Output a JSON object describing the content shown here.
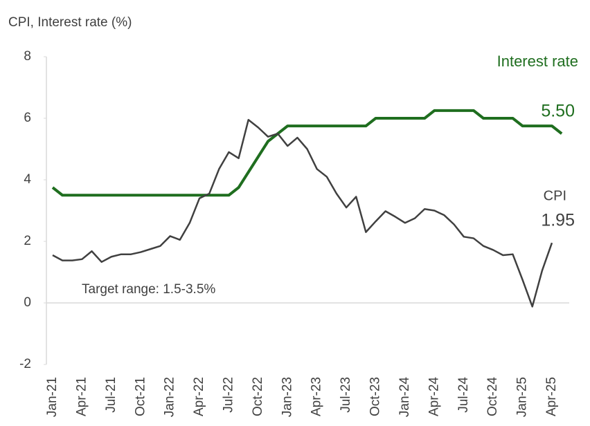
{
  "chart_data": {
    "type": "line",
    "y_axis_title": "CPI, Interest rate (%)",
    "categories": [
      "Jan-21",
      null,
      null,
      "Apr-21",
      null,
      null,
      "Jul-21",
      null,
      null,
      "Oct-21",
      null,
      null,
      "Jan-22",
      null,
      null,
      "Apr-22",
      null,
      null,
      "Jul-22",
      null,
      null,
      "Oct-22",
      null,
      null,
      "Jan-23",
      null,
      null,
      "Apr-23",
      null,
      null,
      "Jul-23",
      null,
      null,
      "Oct-23",
      null,
      null,
      "Jan-24",
      null,
      null,
      "Apr-24",
      null,
      null,
      "Jul-24",
      null,
      null,
      "Oct-24",
      null,
      null,
      "Jan-25",
      null,
      null,
      "Apr-25",
      null
    ],
    "series": [
      {
        "name": "Interest rate",
        "color": "#1f6e1f",
        "values": [
          3.75,
          3.5,
          3.5,
          3.5,
          3.5,
          3.5,
          3.5,
          3.5,
          3.5,
          3.5,
          3.5,
          3.5,
          3.5,
          3.5,
          3.5,
          3.5,
          3.5,
          3.5,
          3.5,
          3.75,
          4.25,
          4.75,
          5.25,
          5.5,
          5.75,
          5.75,
          5.75,
          5.75,
          5.75,
          5.75,
          5.75,
          5.75,
          5.75,
          6.0,
          6.0,
          6.0,
          6.0,
          6.0,
          6.0,
          6.25,
          6.25,
          6.25,
          6.25,
          6.25,
          6.0,
          6.0,
          6.0,
          6.0,
          5.75,
          5.75,
          5.75,
          5.75,
          5.5
        ],
        "value_labels": [
          null,
          null,
          null,
          null,
          null,
          null,
          null,
          null,
          null,
          null,
          null,
          null,
          null,
          null,
          null,
          null,
          null,
          null,
          null,
          null,
          null,
          null,
          null,
          null,
          null,
          null,
          null,
          null,
          null,
          null,
          null,
          null,
          null,
          null,
          null,
          null,
          null,
          null,
          null,
          null,
          null,
          null,
          null,
          null,
          null,
          null,
          null,
          null,
          null,
          null,
          null,
          null,
          "5.50"
        ]
      },
      {
        "name": "CPI",
        "color": "#404040",
        "values": [
          1.55,
          1.38,
          1.38,
          1.42,
          1.68,
          1.33,
          1.5,
          1.58,
          1.58,
          1.65,
          1.75,
          1.85,
          2.17,
          2.05,
          2.6,
          3.4,
          3.55,
          4.35,
          4.9,
          4.7,
          5.95,
          5.7,
          5.4,
          5.5,
          5.1,
          5.37,
          5.0,
          4.35,
          4.1,
          3.55,
          3.1,
          3.45,
          2.3,
          2.65,
          2.98,
          2.8,
          2.6,
          2.75,
          3.05,
          3.0,
          2.85,
          2.55,
          2.15,
          2.1,
          1.85,
          1.72,
          1.55,
          1.58,
          0.75,
          -0.12,
          1.05,
          1.95,
          null
        ]
      }
    ],
    "annotations": [
      "Target range: 1.5-3.5%"
    ],
    "ylim": [
      -2,
      8
    ],
    "yticks": [
      -2,
      0,
      2,
      4,
      6,
      8
    ],
    "grid": false
  }
}
